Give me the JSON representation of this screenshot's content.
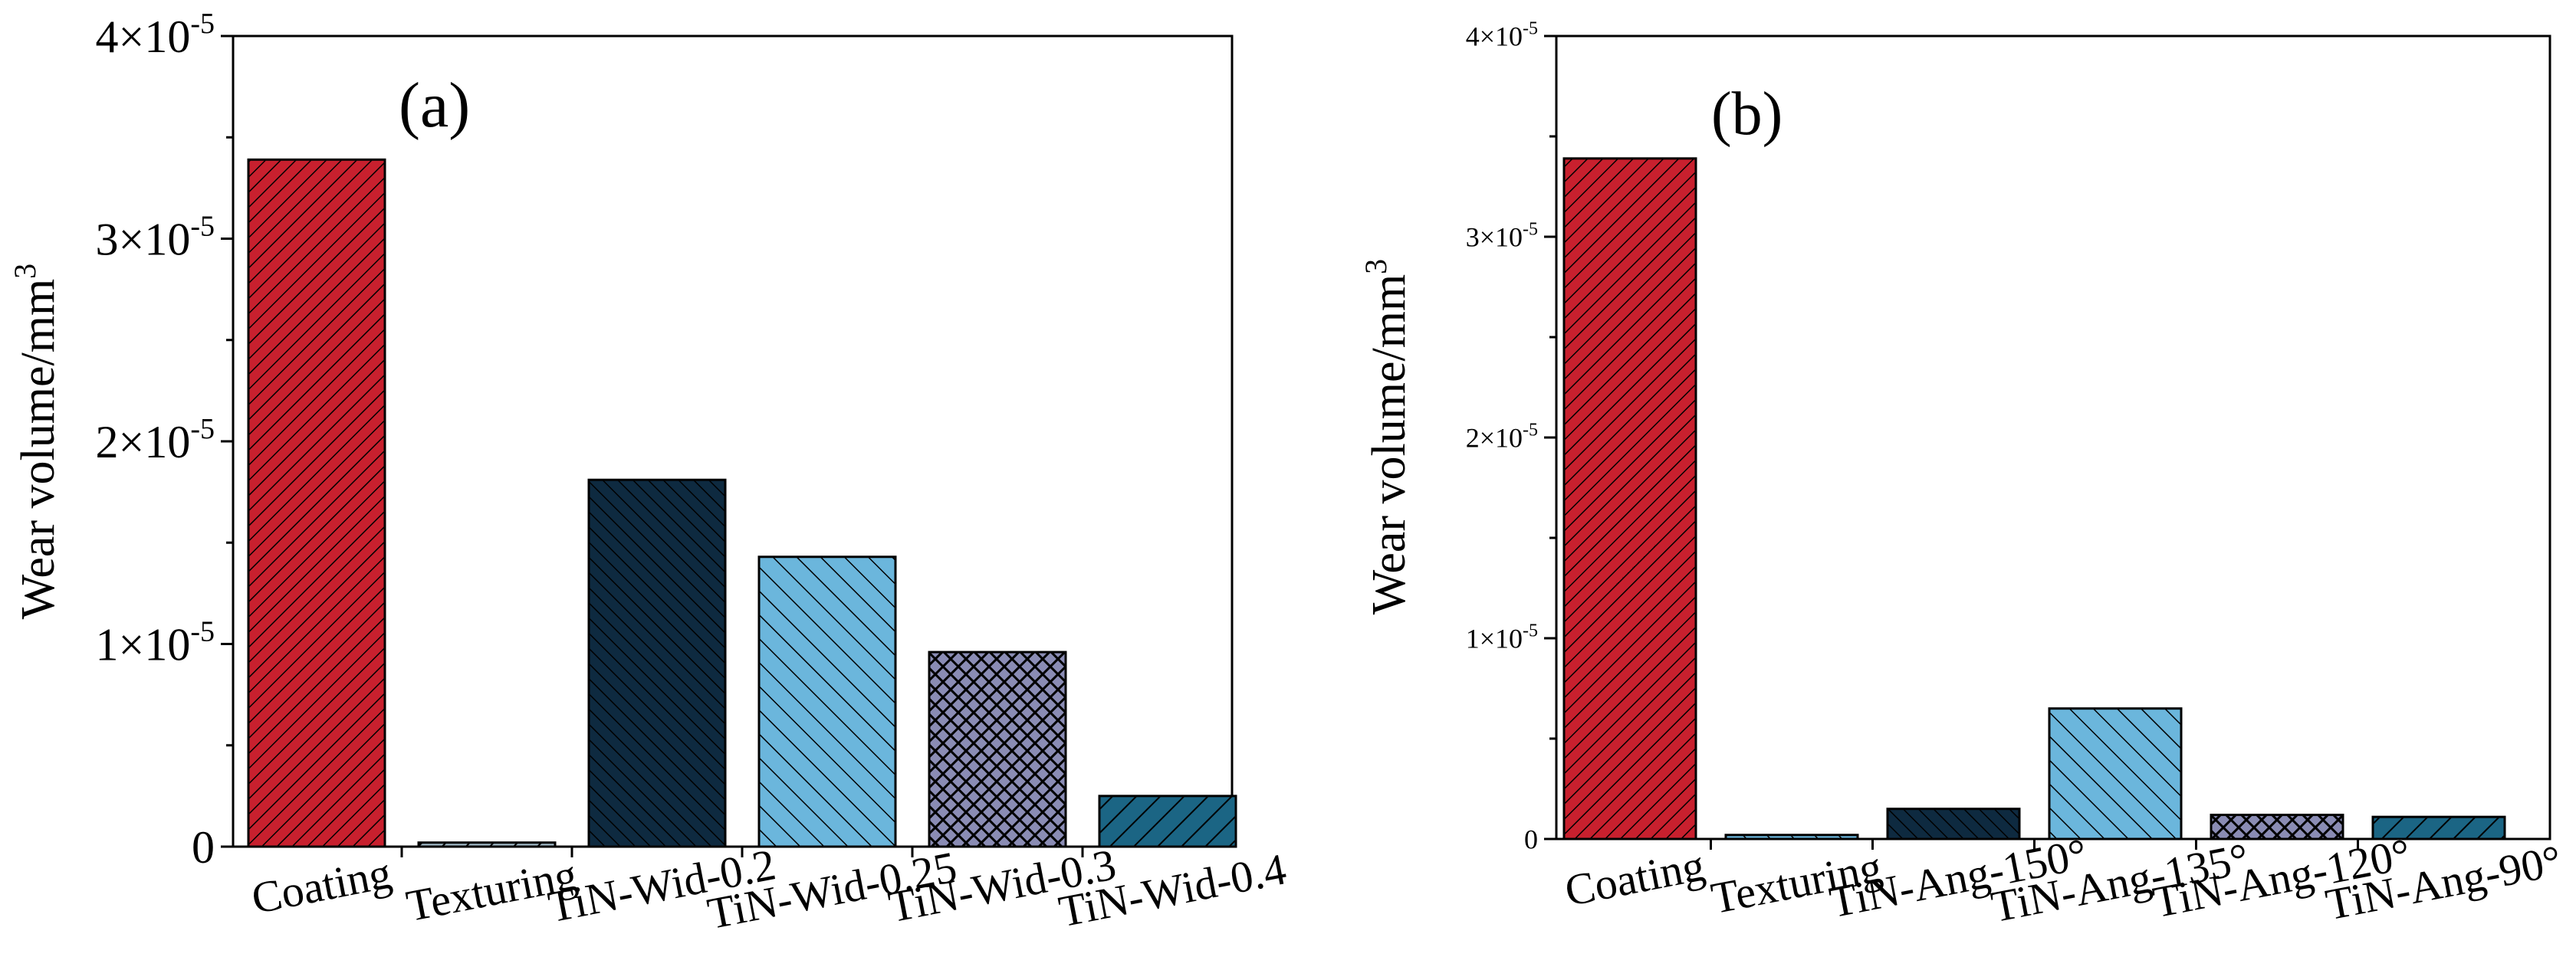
{
  "chart_data": [
    {
      "panel": "(a)",
      "type": "bar",
      "ylabel": "Wear volume/mm",
      "ylabel_sup": "3",
      "ylim": [
        0,
        4e-05
      ],
      "yticks": [
        {
          "value": 0,
          "mant": "0",
          "exp": ""
        },
        {
          "value": 1e-05,
          "mant": "1×10",
          "exp": "-5"
        },
        {
          "value": 2e-05,
          "mant": "2×10",
          "exp": "-5"
        },
        {
          "value": 3e-05,
          "mant": "3×10",
          "exp": "-5"
        },
        {
          "value": 4e-05,
          "mant": "4×10",
          "exp": "-5"
        }
      ],
      "categories": [
        "Coating",
        "Texturing",
        "TiN-Wid-0.2",
        "TiN-Wid-0.25",
        "TiN-Wid-0.3",
        "TiN-Wid-0.4"
      ],
      "values": [
        3.39e-05,
        2e-07,
        1.81e-05,
        1.43e-05,
        9.6e-06,
        2.5e-06
      ],
      "colors": [
        "#c8202e",
        "#9fb7c4",
        "#0e2a40",
        "#6bb6dc",
        "#8a8cb4",
        "#1b6584"
      ],
      "patterns": [
        "diag-dense",
        "diag",
        "back-dense",
        "back",
        "cross",
        "diag"
      ]
    },
    {
      "panel": "(b)",
      "type": "bar",
      "ylabel": "Wear volume/mm",
      "ylabel_sup": "3",
      "ylim": [
        0,
        4e-05
      ],
      "yticks": [
        {
          "value": 0,
          "mant": "0",
          "exp": ""
        },
        {
          "value": 1e-05,
          "mant": "1×10",
          "exp": "-5"
        },
        {
          "value": 2e-05,
          "mant": "2×10",
          "exp": "-5"
        },
        {
          "value": 3e-05,
          "mant": "3×10",
          "exp": "-5"
        },
        {
          "value": 4e-05,
          "mant": "4×10",
          "exp": "-5"
        }
      ],
      "categories": [
        "Coating",
        "Texturing",
        "TiN-Ang-150°",
        "TiN-Ang-135°",
        "TiN-Ang-120°",
        "TiN-Ang-90°"
      ],
      "values": [
        3.39e-05,
        2e-07,
        1.5e-06,
        6.5e-06,
        1.2e-06,
        1.1e-06
      ],
      "colors": [
        "#c8202e",
        "#6bb6dc",
        "#0e2a40",
        "#6bb6dc",
        "#8a8cb4",
        "#1b6584"
      ],
      "patterns": [
        "diag-dense",
        "back",
        "back-dense",
        "back",
        "cross",
        "diag"
      ]
    }
  ]
}
